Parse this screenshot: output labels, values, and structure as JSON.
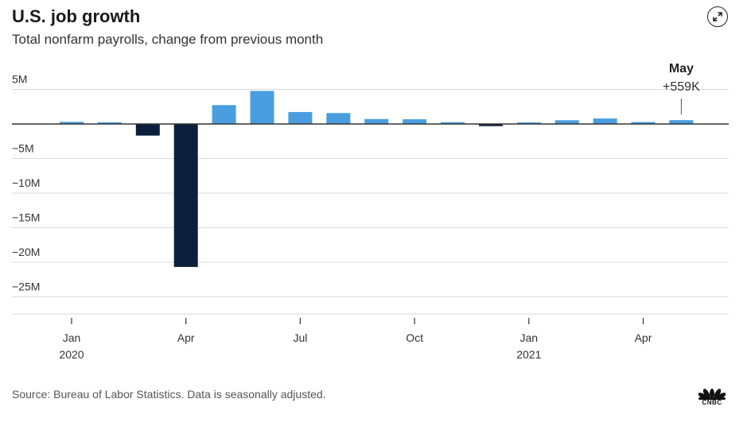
{
  "header": {
    "title": "U.S. job growth",
    "subtitle": "Total nonfarm payrolls, change from previous month",
    "expand_icon": "expand-arrows-icon"
  },
  "footer": {
    "source": "Source: Bureau of Labor Statistics. Data is seasonally adjusted.",
    "logo": "CNBC"
  },
  "chart_data": {
    "type": "bar",
    "title": "U.S. job growth",
    "subtitle": "Total nonfarm payrolls, change from previous month",
    "unit": "millions",
    "categories": [
      "2020-01",
      "2020-02",
      "2020-03",
      "2020-04",
      "2020-05",
      "2020-06",
      "2020-07",
      "2020-08",
      "2020-09",
      "2020-10",
      "2020-11",
      "2020-12",
      "2021-01",
      "2021-02",
      "2021-03",
      "2021-04",
      "2021-05"
    ],
    "values": [
      0.31,
      0.25,
      -1.68,
      -20.68,
      2.73,
      4.78,
      1.73,
      1.58,
      0.72,
      0.68,
      0.26,
      -0.31,
      0.23,
      0.54,
      0.79,
      0.28,
      0.559
    ],
    "ylim": [
      -27.5,
      6
    ],
    "y_ticks": [
      {
        "value": 5,
        "label": "5M"
      },
      {
        "value": 0,
        "label": ""
      },
      {
        "value": -5,
        "label": "−5M"
      },
      {
        "value": -10,
        "label": "−10M"
      },
      {
        "value": -15,
        "label": "−15M"
      },
      {
        "value": -20,
        "label": "−20M"
      },
      {
        "value": -25,
        "label": "−25M"
      }
    ],
    "x_ticks": [
      {
        "index": 0,
        "label": "Jan",
        "sublabel": "2020"
      },
      {
        "index": 3,
        "label": "Apr",
        "sublabel": ""
      },
      {
        "index": 6,
        "label": "Jul",
        "sublabel": ""
      },
      {
        "index": 9,
        "label": "Oct",
        "sublabel": ""
      },
      {
        "index": 12,
        "label": "Jan",
        "sublabel": "2021"
      },
      {
        "index": 15,
        "label": "Apr",
        "sublabel": ""
      }
    ],
    "annotation": {
      "index": 16,
      "label": "May",
      "value_label": "+559K"
    },
    "colors": {
      "positive": "#4a9ee0",
      "negative": "#0c1f3a",
      "grid": "#d9d9d9",
      "zero": "#333333"
    },
    "grid": true,
    "legend": "none"
  }
}
